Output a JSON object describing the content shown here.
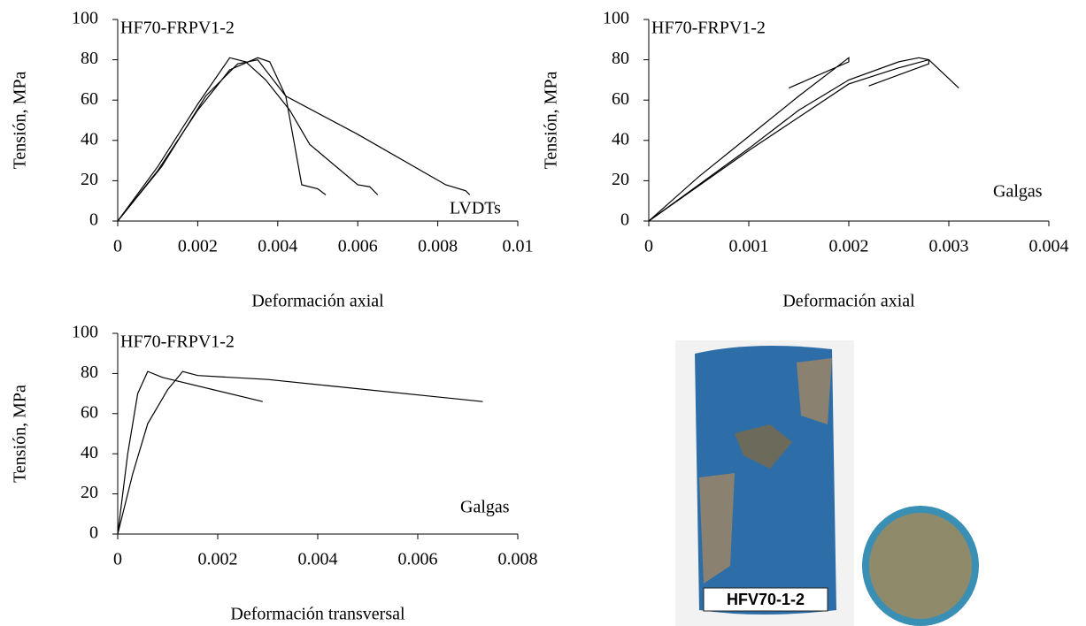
{
  "chart_data": [
    {
      "type": "line",
      "annotation": "HF70-FRPV1-2",
      "note": "LVDTs",
      "xlabel": "Deformación axial",
      "ylabel": "Tensión, MPa",
      "color": "#000000",
      "xlim": [
        0,
        0.01
      ],
      "ylim": [
        0,
        100
      ],
      "xticks": [
        0,
        0.002,
        0.004,
        0.006,
        0.008,
        0.01
      ],
      "yticks": [
        0,
        20,
        40,
        60,
        80,
        100
      ],
      "series": [
        {
          "x": [
            0,
            0.001,
            0.002,
            0.0028,
            0.0035,
            0.0038,
            0.0042,
            0.0046,
            0.005,
            0.0052
          ],
          "values": [
            0,
            25,
            55,
            75,
            81,
            79,
            62,
            18,
            16,
            13
          ]
        },
        {
          "x": [
            0,
            0.001,
            0.002,
            0.0028,
            0.0032,
            0.0037,
            0.0043,
            0.0048,
            0.006,
            0.0063,
            0.0065
          ],
          "values": [
            0,
            27,
            58,
            81,
            79,
            70,
            55,
            38,
            18,
            17,
            13
          ]
        },
        {
          "x": [
            0,
            0.0011,
            0.0022,
            0.003,
            0.0035,
            0.0042,
            0.006,
            0.0082,
            0.0087,
            0.0088
          ],
          "values": [
            0,
            27,
            62,
            78,
            80,
            62,
            43,
            18,
            15,
            13
          ]
        }
      ]
    },
    {
      "type": "line",
      "annotation": "HF70-FRPV1-2",
      "note": "Galgas",
      "xlabel": "Deformación axial",
      "ylabel": "Tensión, MPa",
      "color": "#000000",
      "xlim": [
        0,
        0.004
      ],
      "ylim": [
        0,
        100
      ],
      "xticks": [
        0,
        0.001,
        0.002,
        0.003,
        0.004
      ],
      "yticks": [
        0,
        20,
        40,
        60,
        80,
        100
      ],
      "series": [
        {
          "x": [
            0,
            0.0005,
            0.001,
            0.0015,
            0.002,
            0.0025,
            0.0027,
            0.0028,
            0.0031
          ],
          "values": [
            0,
            18,
            36,
            55,
            70,
            79,
            81,
            80,
            66
          ]
        },
        {
          "x": [
            0,
            0.0005,
            0.001,
            0.0015,
            0.002,
            0.002,
            0.0014
          ],
          "values": [
            0,
            22,
            42,
            62,
            81,
            79,
            66
          ]
        },
        {
          "x": [
            0,
            0.001,
            0.002,
            0.0025,
            0.0028,
            0.0028,
            0.0022
          ],
          "values": [
            0,
            35,
            68,
            76,
            80,
            78,
            67
          ]
        }
      ]
    },
    {
      "type": "line",
      "annotation": "HF70-FRPV1-2",
      "note": "Galgas",
      "xlabel": "Deformación transversal",
      "ylabel": "Tensión, MPa",
      "color": "#000000",
      "xlim": [
        0,
        0.008
      ],
      "ylim": [
        0,
        100
      ],
      "xticks": [
        0,
        0.002,
        0.004,
        0.006,
        0.008
      ],
      "yticks": [
        0,
        20,
        40,
        60,
        80,
        100
      ],
      "series": [
        {
          "x": [
            0,
            0.0002,
            0.0004,
            0.0006,
            0.0009,
            0.0029
          ],
          "values": [
            0,
            40,
            70,
            81,
            78,
            66
          ]
        },
        {
          "x": [
            0,
            0.0003,
            0.0006,
            0.001,
            0.0013,
            0.0016,
            0.003,
            0.0073
          ],
          "values": [
            0,
            30,
            55,
            72,
            81,
            79,
            77,
            66
          ]
        }
      ]
    }
  ],
  "photo_label": "HFV70-1-2"
}
